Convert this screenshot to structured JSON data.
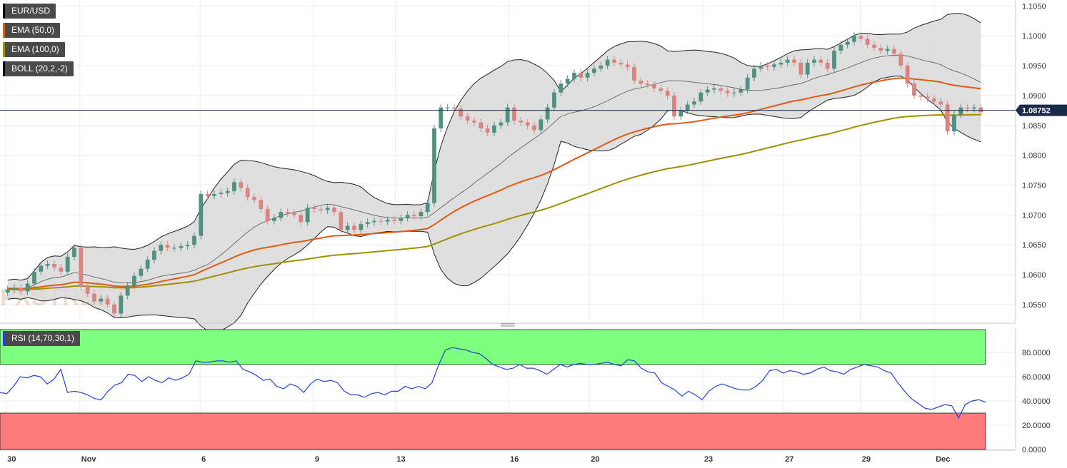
{
  "legends": {
    "symbol": "EUR/USD",
    "ema50": "EMA (50,0)",
    "ema100": "EMA (100,0)",
    "boll": "BOLL (20,2,-2)",
    "rsi": "RSI (14,70,30,1)"
  },
  "colors": {
    "up": "#4f9080",
    "down": "#d98480",
    "ema50": "#e05a10",
    "ema100": "#a09000",
    "boll": "#222222",
    "rsi_line": "#2244dd",
    "overbought": "#7dff7d",
    "oversold": "#ff7b7b",
    "price_tag": "#1a2b4a"
  },
  "chart_data": [
    {
      "type": "candlestick",
      "title": "EUR/USD",
      "current_price_label": "1.08752",
      "current_price": 1.08752,
      "ylim": [
        1.052,
        1.106
      ],
      "y_ticks": [
        "1.0550",
        "1.0600",
        "1.0650",
        "1.0700",
        "1.0750",
        "1.0800",
        "1.0850",
        "1.0900",
        "1.0950",
        "1.1000",
        "1.1050"
      ],
      "x_tick_labels": [
        "30",
        "Nov",
        "6",
        "9",
        "13",
        "16",
        "20",
        "23",
        "27",
        "29",
        "Dec"
      ],
      "watermark": "FXSTREET",
      "candles_close": [
        1.0575,
        1.0578,
        1.0572,
        1.0585,
        1.0605,
        1.0615,
        1.0618,
        1.0612,
        1.0605,
        1.063,
        1.0645,
        1.058,
        1.0568,
        1.0555,
        1.056,
        1.055,
        1.0535,
        1.0565,
        1.0582,
        1.0598,
        1.061,
        1.0625,
        1.064,
        1.065,
        1.0645,
        1.0645,
        1.0648,
        1.065,
        1.0665,
        1.0735,
        1.0732,
        1.0735,
        1.0737,
        1.074,
        1.0755,
        1.0745,
        1.073,
        1.0725,
        1.071,
        1.069,
        1.0695,
        1.0705,
        1.0703,
        1.07,
        1.0688,
        1.0712,
        1.071,
        1.0708,
        1.0712,
        1.0705,
        1.0675,
        1.0682,
        1.0675,
        1.0685,
        1.0688,
        1.069,
        1.0689,
        1.0692,
        1.069,
        1.0695,
        1.07,
        1.0698,
        1.0705,
        1.072,
        1.0845,
        1.088,
        1.088,
        1.0878,
        1.0865,
        1.0858,
        1.0855,
        1.0845,
        1.0838,
        1.085,
        1.0855,
        1.088,
        1.0858,
        1.0855,
        1.085,
        1.0842,
        1.086,
        1.088,
        1.0905,
        1.092,
        1.0928,
        1.0938,
        1.093,
        1.0938,
        1.0945,
        1.095,
        1.096,
        1.0955,
        1.0952,
        1.0948,
        1.0925,
        1.092,
        1.0918,
        1.0912,
        1.0908,
        1.09,
        1.0865,
        1.0875,
        1.0885,
        1.089,
        1.0905,
        1.091,
        1.0912,
        1.0908,
        1.0904,
        1.0905,
        1.091,
        1.093,
        1.0945,
        1.095,
        1.0948,
        1.0952,
        1.0955,
        1.096,
        1.0955,
        1.0935,
        1.0955,
        1.096,
        1.0955,
        1.0945,
        1.0975,
        1.0985,
        1.099,
        1.1,
        1.0995,
        1.0985,
        1.098,
        1.0975,
        1.0978,
        1.097,
        1.095,
        1.092,
        1.09,
        1.0898,
        1.0895,
        1.089,
        1.0885,
        1.084,
        1.0868,
        1.088,
        1.0878,
        1.088,
        1.0872
      ]
    },
    {
      "type": "line",
      "title": "RSI (14,70,30,1)",
      "ylim": [
        0,
        100
      ],
      "y_ticks": [
        "0.0000",
        "20.0000",
        "40.0000",
        "60.0000",
        "80.0000"
      ],
      "overbought": 70,
      "oversold": 30,
      "values": [
        47,
        46,
        52,
        60,
        59,
        61,
        60,
        54,
        58,
        66,
        47,
        48,
        47,
        45,
        42,
        41,
        48,
        53,
        55,
        62,
        61,
        56,
        60,
        57,
        55,
        59,
        57,
        59,
        62,
        73,
        72,
        72,
        73,
        73,
        72,
        73,
        66,
        64,
        61,
        57,
        58,
        52,
        50,
        54,
        52,
        47,
        54,
        58,
        56,
        57,
        55,
        48,
        45,
        45,
        43,
        46,
        47,
        45,
        48,
        48,
        52,
        50,
        52,
        50,
        55,
        70,
        82,
        84,
        83,
        82,
        80,
        79,
        75,
        70,
        68,
        66,
        67,
        70,
        67,
        67,
        65,
        62,
        66,
        70,
        68,
        70,
        71,
        70,
        70,
        71,
        72,
        70,
        69,
        74,
        73,
        67,
        64,
        63,
        55,
        52,
        49,
        44,
        48,
        45,
        41,
        48,
        52,
        54,
        52,
        50,
        49,
        49,
        52,
        57,
        65,
        66,
        63,
        65,
        64,
        62,
        63,
        66,
        68,
        65,
        64,
        62,
        66,
        68,
        70,
        69,
        68,
        65,
        63,
        55,
        48,
        42,
        38,
        34,
        33,
        35,
        37,
        36,
        26,
        37,
        40,
        41,
        39
      ]
    }
  ]
}
